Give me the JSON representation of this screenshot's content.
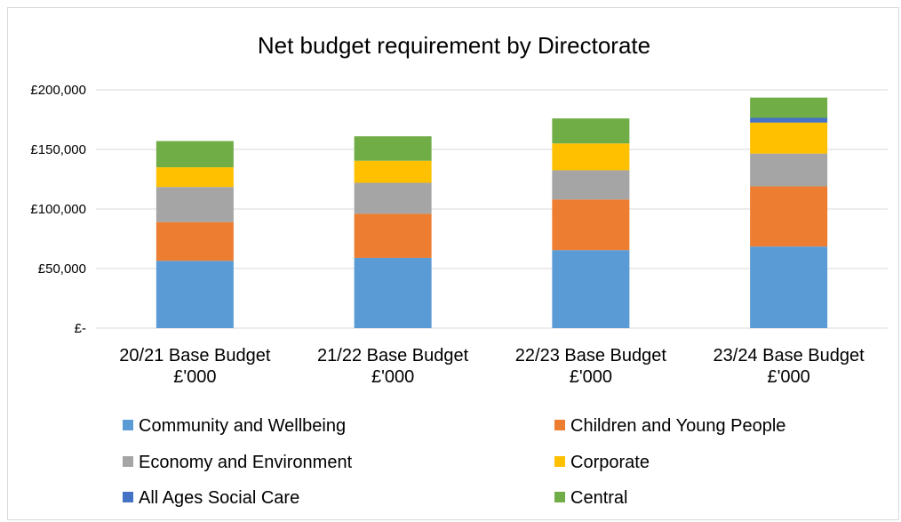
{
  "chart_data": {
    "type": "bar",
    "stacked": true,
    "title": "Net budget requirement by Directorate",
    "xlabel": "",
    "ylabel": "",
    "categories": [
      [
        "20/21 Base Budget",
        "£'000"
      ],
      [
        "21/22 Base Budget",
        "£'000"
      ],
      [
        "22/23 Base Budget",
        "£'000"
      ],
      [
        "23/24 Base Budget",
        "£'000"
      ]
    ],
    "series": [
      {
        "name": "Community and Wellbeing",
        "color": "#5b9bd5",
        "values": [
          56500,
          59000,
          65500,
          68500
        ]
      },
      {
        "name": "Children and Young People",
        "color": "#ed7d31",
        "values": [
          32500,
          37000,
          42500,
          50500
        ]
      },
      {
        "name": "Economy and Environment",
        "color": "#a5a5a5",
        "values": [
          29500,
          26000,
          24500,
          27500
        ]
      },
      {
        "name": "Corporate",
        "color": "#ffc000",
        "values": [
          16500,
          18500,
          22500,
          26000
        ]
      },
      {
        "name": "All Ages Social Care",
        "color": "#4472c4",
        "values": [
          0,
          0,
          0,
          4000
        ]
      },
      {
        "name": "Central",
        "color": "#70ad47",
        "values": [
          22000,
          20500,
          21000,
          17000
        ]
      }
    ],
    "ylim": [
      0,
      200000
    ],
    "yticks": [
      {
        "value": 0,
        "label": "£-"
      },
      {
        "value": 50000,
        "label": "£50,000"
      },
      {
        "value": 100000,
        "label": "£100,000"
      },
      {
        "value": 150000,
        "label": "£150,000"
      },
      {
        "value": 200000,
        "label": "£200,000"
      }
    ],
    "grid": true,
    "legend_position": "bottom"
  }
}
